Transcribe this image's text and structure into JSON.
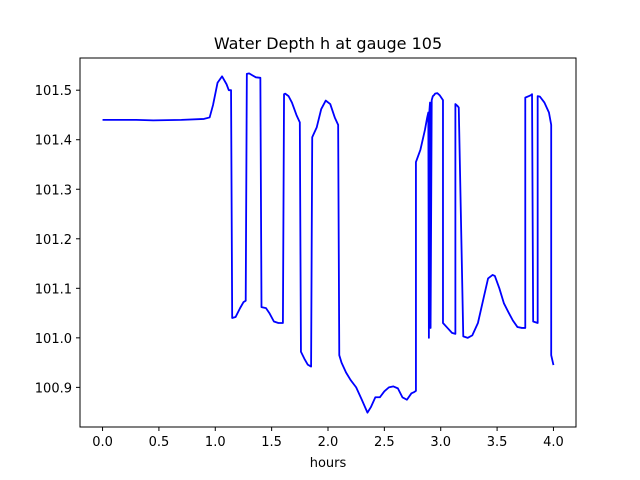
{
  "chart_data": {
    "type": "line",
    "title": "Water Depth h at gauge 105",
    "xlabel": "hours",
    "ylabel": "",
    "xlim": [
      -0.2,
      4.2
    ],
    "ylim": [
      100.82,
      101.565
    ],
    "xticks": [
      0.0,
      0.5,
      1.0,
      1.5,
      2.0,
      2.5,
      3.0,
      3.5,
      4.0
    ],
    "xtick_labels": [
      "0.0",
      "0.5",
      "1.0",
      "1.5",
      "2.0",
      "2.5",
      "3.0",
      "3.5",
      "4.0"
    ],
    "yticks": [
      100.9,
      101.0,
      101.1,
      101.2,
      101.3,
      101.4,
      101.5
    ],
    "ytick_labels": [
      "100.9",
      "101.0",
      "101.1",
      "101.2",
      "101.3",
      "101.4",
      "101.5"
    ],
    "grid": false,
    "series": [
      {
        "color": "#0000ff",
        "x": [
          0.0,
          0.3,
          0.45,
          0.7,
          0.9,
          0.95,
          0.98,
          1.02,
          1.06,
          1.1,
          1.12,
          1.14,
          1.15,
          1.18,
          1.22,
          1.25,
          1.27,
          1.28,
          1.3,
          1.33,
          1.36,
          1.4,
          1.41,
          1.45,
          1.48,
          1.52,
          1.56,
          1.6,
          1.61,
          1.62,
          1.65,
          1.68,
          1.72,
          1.75,
          1.76,
          1.79,
          1.82,
          1.85,
          1.86,
          1.87,
          1.9,
          1.94,
          1.98,
          2.02,
          2.06,
          2.09,
          2.1,
          2.12,
          2.16,
          2.2,
          2.25,
          2.3,
          2.35,
          2.38,
          2.42,
          2.46,
          2.5,
          2.54,
          2.58,
          2.62,
          2.66,
          2.7,
          2.74,
          2.76,
          2.78,
          2.78,
          2.82,
          2.86,
          2.88,
          2.89,
          2.895,
          2.9,
          2.905,
          2.91,
          2.92,
          2.93,
          2.94,
          2.95,
          2.97,
          2.99,
          3.02,
          3.02,
          3.06,
          3.1,
          3.13,
          3.13,
          3.15,
          3.16,
          3.2,
          3.24,
          3.28,
          3.33,
          3.38,
          3.42,
          3.46,
          3.48,
          3.52,
          3.56,
          3.6,
          3.64,
          3.68,
          3.72,
          3.75,
          3.75,
          3.78,
          3.8,
          3.81,
          3.82,
          3.86,
          3.86,
          3.88,
          3.92,
          3.96,
          3.98,
          3.98,
          4.0
        ],
        "values": [
          101.44,
          101.44,
          101.439,
          101.44,
          101.442,
          101.445,
          101.47,
          101.515,
          101.528,
          101.512,
          101.5,
          101.5,
          101.04,
          101.042,
          101.06,
          101.072,
          101.075,
          101.533,
          101.534,
          101.53,
          101.526,
          101.525,
          101.062,
          101.06,
          101.05,
          101.033,
          101.03,
          101.03,
          101.492,
          101.493,
          101.488,
          101.475,
          101.45,
          101.435,
          100.972,
          100.958,
          100.946,
          100.942,
          101.405,
          101.41,
          101.425,
          101.462,
          101.479,
          101.472,
          101.445,
          101.43,
          100.965,
          100.95,
          100.93,
          100.915,
          100.9,
          100.875,
          100.849,
          100.86,
          100.88,
          100.88,
          100.892,
          100.9,
          100.902,
          100.898,
          100.88,
          100.875,
          100.888,
          100.89,
          100.893,
          101.355,
          101.38,
          101.42,
          101.445,
          101.455,
          101.0,
          101.46,
          101.475,
          101.02,
          101.48,
          101.488,
          101.49,
          101.493,
          101.494,
          101.49,
          101.48,
          101.03,
          101.02,
          101.01,
          101.008,
          101.472,
          101.468,
          101.465,
          101.003,
          101.0,
          101.005,
          101.03,
          101.08,
          101.12,
          101.127,
          101.125,
          101.1,
          101.07,
          101.052,
          101.035,
          101.022,
          101.02,
          101.02,
          101.485,
          101.488,
          101.49,
          101.492,
          101.033,
          101.03,
          101.488,
          101.487,
          101.475,
          101.455,
          101.43,
          100.965,
          100.945
        ]
      }
    ]
  }
}
